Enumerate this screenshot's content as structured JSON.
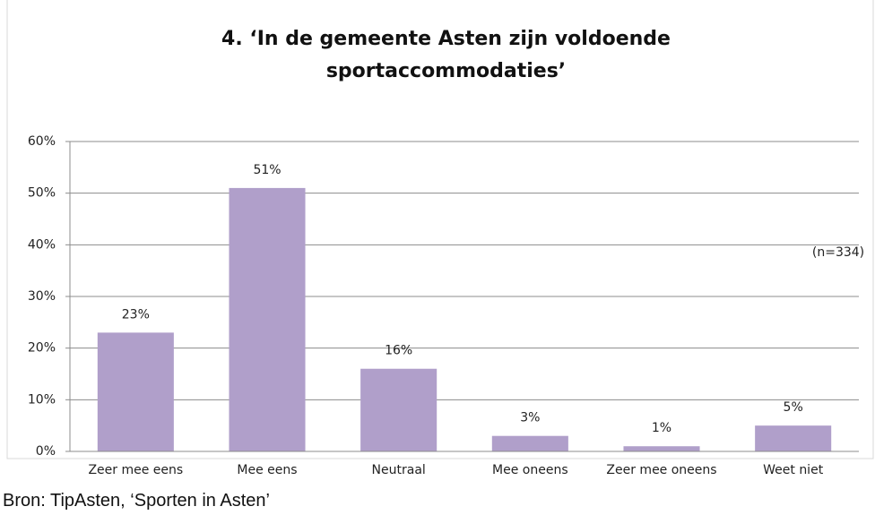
{
  "chart_data": {
    "type": "bar",
    "title": "4. ‘In de gemeente Asten zijn voldoende sportaccommodaties’",
    "annotation": "(n=334)",
    "source": "Bron: TipAsten, ‘Sporten in Asten’",
    "categories": [
      "Zeer mee eens",
      "Mee eens",
      "Neutraal",
      "Mee oneens",
      "Zeer mee oneens",
      "Weet niet"
    ],
    "values": [
      23,
      51,
      16,
      3,
      1,
      5
    ],
    "value_labels": [
      "23%",
      "51%",
      "16%",
      "3%",
      "1%",
      "5%"
    ],
    "color": "#b09fca",
    "ylim": [
      0,
      60
    ],
    "yticks": [
      {
        "value": 0,
        "label": "0%"
      },
      {
        "value": 10,
        "label": "10%"
      },
      {
        "value": 20,
        "label": "20%"
      },
      {
        "value": 30,
        "label": "30%"
      },
      {
        "value": 40,
        "label": "40%"
      },
      {
        "value": 50,
        "label": "50%"
      },
      {
        "value": 60,
        "label": "60%"
      }
    ],
    "grid": true
  }
}
